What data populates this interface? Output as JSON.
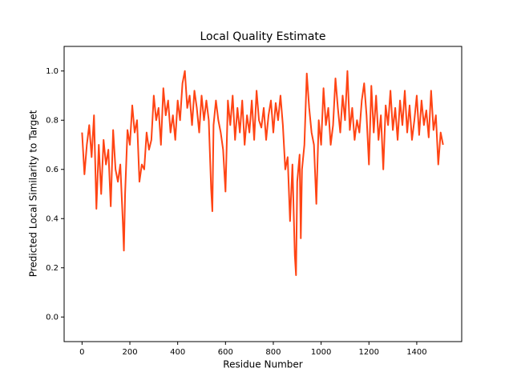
{
  "chart_data": {
    "type": "line",
    "title": "Local Quality Estimate",
    "x_label": "Residue Number",
    "y_label": "Predicted Local Similarity to Target",
    "x": [
      0,
      10,
      20,
      30,
      40,
      50,
      60,
      70,
      80,
      90,
      100,
      110,
      120,
      130,
      140,
      150,
      160,
      170,
      175,
      180,
      190,
      200,
      210,
      220,
      230,
      240,
      250,
      260,
      270,
      280,
      290,
      300,
      310,
      320,
      330,
      340,
      350,
      360,
      370,
      380,
      390,
      400,
      410,
      420,
      430,
      440,
      450,
      460,
      470,
      480,
      490,
      500,
      510,
      520,
      530,
      540,
      545,
      550,
      560,
      570,
      580,
      590,
      600,
      610,
      620,
      630,
      640,
      650,
      660,
      670,
      680,
      690,
      700,
      710,
      720,
      730,
      740,
      750,
      760,
      770,
      780,
      790,
      800,
      810,
      820,
      830,
      840,
      850,
      860,
      870,
      880,
      890,
      895,
      900,
      910,
      915,
      920,
      930,
      940,
      950,
      960,
      970,
      980,
      990,
      1000,
      1010,
      1020,
      1030,
      1040,
      1050,
      1060,
      1070,
      1080,
      1090,
      1100,
      1110,
      1120,
      1130,
      1140,
      1150,
      1160,
      1170,
      1180,
      1190,
      1200,
      1210,
      1220,
      1230,
      1240,
      1250,
      1260,
      1270,
      1280,
      1290,
      1300,
      1310,
      1320,
      1330,
      1340,
      1350,
      1360,
      1370,
      1380,
      1390,
      1400,
      1410,
      1420,
      1430,
      1440,
      1450,
      1460,
      1470,
      1480,
      1490,
      1500,
      1510
    ],
    "series": [
      {
        "color": "#ff4414",
        "values": [
          0.75,
          0.58,
          0.7,
          0.78,
          0.65,
          0.82,
          0.44,
          0.7,
          0.5,
          0.72,
          0.62,
          0.68,
          0.45,
          0.76,
          0.6,
          0.55,
          0.62,
          0.4,
          0.27,
          0.5,
          0.76,
          0.7,
          0.86,
          0.75,
          0.8,
          0.55,
          0.62,
          0.6,
          0.75,
          0.68,
          0.72,
          0.9,
          0.8,
          0.85,
          0.7,
          0.93,
          0.82,
          0.88,
          0.75,
          0.82,
          0.72,
          0.88,
          0.8,
          0.95,
          1.0,
          0.85,
          0.9,
          0.78,
          0.92,
          0.85,
          0.75,
          0.9,
          0.8,
          0.88,
          0.8,
          0.52,
          0.43,
          0.78,
          0.88,
          0.8,
          0.75,
          0.68,
          0.51,
          0.88,
          0.78,
          0.9,
          0.72,
          0.85,
          0.75,
          0.88,
          0.7,
          0.82,
          0.75,
          0.88,
          0.72,
          0.92,
          0.8,
          0.77,
          0.85,
          0.72,
          0.82,
          0.88,
          0.75,
          0.87,
          0.8,
          0.9,
          0.78,
          0.6,
          0.65,
          0.39,
          0.62,
          0.25,
          0.17,
          0.55,
          0.66,
          0.32,
          0.6,
          0.7,
          0.99,
          0.85,
          0.75,
          0.7,
          0.46,
          0.8,
          0.7,
          0.93,
          0.78,
          0.85,
          0.7,
          0.78,
          0.97,
          0.85,
          0.75,
          0.9,
          0.8,
          1.0,
          0.76,
          0.85,
          0.72,
          0.8,
          0.75,
          0.88,
          0.95,
          0.82,
          0.62,
          0.94,
          0.75,
          0.9,
          0.72,
          0.82,
          0.6,
          0.86,
          0.78,
          0.92,
          0.76,
          0.85,
          0.72,
          0.88,
          0.78,
          0.92,
          0.75,
          0.86,
          0.72,
          0.8,
          0.9,
          0.74,
          0.88,
          0.78,
          0.84,
          0.73,
          0.92,
          0.76,
          0.82,
          0.62,
          0.75,
          0.7
        ]
      }
    ],
    "xlim": [
      -75,
      1588
    ],
    "ylim": [
      -0.1,
      1.1
    ],
    "xticks": [
      0,
      200,
      400,
      600,
      800,
      1000,
      1200,
      1400
    ],
    "yticks": [
      {
        "value": 0,
        "label": "0.0"
      },
      0.2,
      0.4,
      0.6,
      0.8,
      {
        "value": 1,
        "label": "1.0"
      }
    ]
  }
}
